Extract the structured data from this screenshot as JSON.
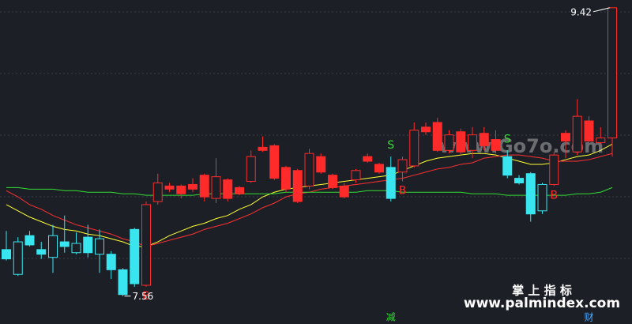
{
  "chart_data": {
    "type": "candlestick",
    "ylim": [
      7.38,
      9.47
    ],
    "open": [
      7.86,
      7.7,
      7.95,
      7.86,
      7.81,
      7.91,
      7.84,
      7.94,
      7.83,
      7.83,
      7.73,
      7.99,
      7.63,
      8.17,
      8.27,
      8.27,
      8.28,
      8.34,
      8.19,
      8.31,
      8.26,
      8.3,
      8.52,
      8.53,
      8.39,
      8.37,
      8.27,
      8.46,
      8.34,
      8.27,
      8.31,
      8.46,
      8.41,
      8.39,
      8.36,
      8.4,
      8.65,
      8.68,
      8.5,
      8.62,
      8.5,
      8.61,
      8.57,
      8.46,
      8.32,
      8.35,
      8.11,
      8.28,
      8.61,
      8.49,
      8.69,
      8.55,
      8.58
    ],
    "high": [
      7.98,
      7.94,
      7.98,
      7.91,
      8.02,
      8.08,
      7.97,
      8.02,
      7.99,
      7.85,
      7.74,
      8.0,
      8.17,
      8.35,
      8.29,
      8.28,
      8.32,
      8.35,
      8.45,
      8.32,
      8.27,
      8.5,
      8.59,
      8.54,
      8.4,
      8.38,
      8.51,
      8.48,
      8.35,
      8.29,
      8.38,
      8.48,
      8.42,
      8.46,
      8.46,
      8.68,
      8.68,
      8.71,
      8.63,
      8.64,
      8.65,
      8.65,
      8.63,
      8.5,
      8.34,
      8.36,
      8.29,
      8.49,
      8.63,
      8.83,
      8.72,
      8.65,
      9.42
    ],
    "low": [
      7.79,
      7.69,
      7.88,
      7.8,
      7.71,
      7.84,
      7.83,
      7.81,
      7.71,
      7.67,
      7.56,
      7.62,
      7.62,
      8.15,
      8.23,
      8.19,
      8.23,
      8.17,
      8.16,
      8.17,
      8.21,
      8.29,
      8.49,
      8.31,
      8.23,
      8.16,
      8.25,
      8.35,
      8.25,
      8.19,
      8.29,
      8.42,
      8.35,
      8.17,
      8.3,
      8.39,
      8.6,
      8.49,
      8.48,
      8.47,
      8.45,
      8.5,
      8.48,
      8.32,
      8.28,
      8.04,
      8.09,
      8.27,
      8.45,
      8.47,
      8.54,
      8.54,
      8.46
    ],
    "close": [
      7.8,
      7.91,
      7.89,
      7.83,
      7.95,
      7.88,
      7.9,
      7.84,
      7.93,
      7.73,
      7.57,
      7.64,
      8.15,
      8.29,
      8.25,
      8.22,
      8.25,
      8.2,
      8.33,
      8.19,
      8.22,
      8.46,
      8.5,
      8.32,
      8.25,
      8.17,
      8.48,
      8.36,
      8.26,
      8.2,
      8.37,
      8.43,
      8.36,
      8.19,
      8.44,
      8.63,
      8.62,
      8.5,
      8.6,
      8.49,
      8.6,
      8.53,
      8.5,
      8.34,
      8.29,
      8.09,
      8.28,
      8.47,
      8.56,
      8.72,
      8.56,
      8.58,
      9.42
    ],
    "candle_colors": [
      "#39e6f0",
      "#39e6f0",
      "#39e6f0",
      "#39e6f0",
      "#39e6f0",
      "#39e6f0",
      "#39e6f0",
      "#39e6f0",
      "#39e6f0",
      "#39e6f0",
      "#39e6f0",
      "#39e6f0",
      "#ff2a2a",
      "#ff2a2a",
      "#ff2a2a",
      "#ff2a2a",
      "#ff2a2a",
      "#ff2a2a",
      "#ff2a2a",
      "#ff2a2a",
      "#ff2a2a",
      "#ff2a2a",
      "#ff2a2a",
      "#ff2a2a",
      "#ff2a2a",
      "#ff2a2a",
      "#ff2a2a",
      "#ff2a2a",
      "#ff2a2a",
      "#ff2a2a",
      "#ff2a2a",
      "#ff2a2a",
      "#ff2a2a",
      "#39e6f0",
      "#ff2a2a",
      "#ff2a2a",
      "#ff2a2a",
      "#ff2a2a",
      "#ff2a2a",
      "#ff2a2a",
      "#ff2a2a",
      "#ff2a2a",
      "#ff2a2a",
      "#39e6f0",
      "#39e6f0",
      "#39e6f0",
      "#39e6f0",
      "#ff2a2a",
      "#ff2a2a",
      "#ff2a2a",
      "#ff2a2a",
      "#ff2a2a",
      "#ff2a2a"
    ],
    "lines": [
      {
        "color": "#ffff33",
        "values": [
          8.15,
          8.11,
          8.07,
          8.04,
          8.01,
          7.99,
          7.98,
          7.96,
          7.95,
          7.93,
          7.91,
          7.88,
          7.88,
          7.91,
          7.95,
          7.98,
          8.01,
          8.03,
          8.06,
          8.08,
          8.12,
          8.15,
          8.2,
          8.23,
          8.25,
          8.26,
          8.27,
          8.28,
          8.29,
          8.3,
          8.31,
          8.32,
          8.33,
          8.34,
          8.37,
          8.4,
          8.43,
          8.45,
          8.46,
          8.47,
          8.48,
          8.48,
          8.47,
          8.45,
          8.43,
          8.41,
          8.41,
          8.42,
          8.44,
          8.46,
          8.47,
          8.5,
          8.54
        ]
      },
      {
        "color": "#ff3030",
        "values": [
          8.24,
          8.2,
          8.15,
          8.12,
          8.08,
          8.05,
          8.02,
          8.0,
          7.98,
          7.96,
          7.93,
          7.91,
          7.88,
          7.9,
          7.92,
          7.94,
          7.96,
          7.99,
          8.01,
          8.03,
          8.06,
          8.09,
          8.13,
          8.16,
          8.2,
          8.22,
          8.23,
          8.25,
          8.26,
          8.27,
          8.28,
          8.29,
          8.3,
          8.31,
          8.32,
          8.34,
          8.36,
          8.38,
          8.39,
          8.41,
          8.42,
          8.45,
          8.46,
          8.47,
          8.47,
          8.46,
          8.45,
          8.43,
          8.43,
          8.43,
          8.44,
          8.46,
          8.48
        ]
      },
      {
        "color": "#33dd33",
        "values": [
          8.26,
          8.26,
          8.25,
          8.25,
          8.25,
          8.24,
          8.24,
          8.23,
          8.23,
          8.23,
          8.22,
          8.22,
          8.21,
          8.21,
          8.21,
          8.21,
          8.21,
          8.22,
          8.22,
          8.22,
          8.22,
          8.22,
          8.22,
          8.22,
          8.23,
          8.23,
          8.23,
          8.23,
          8.23,
          8.23,
          8.23,
          8.24,
          8.24,
          8.24,
          8.23,
          8.23,
          8.23,
          8.23,
          8.23,
          8.23,
          8.22,
          8.22,
          8.22,
          8.21,
          8.21,
          8.21,
          8.21,
          8.21,
          8.21,
          8.22,
          8.22,
          8.23,
          8.26
        ]
      }
    ],
    "signals": [
      null,
      null,
      null,
      null,
      null,
      null,
      null,
      null,
      null,
      null,
      null,
      null,
      "B",
      null,
      null,
      null,
      null,
      null,
      null,
      null,
      null,
      null,
      null,
      null,
      null,
      null,
      null,
      null,
      null,
      null,
      null,
      null,
      null,
      "S",
      "B",
      null,
      null,
      null,
      null,
      null,
      null,
      null,
      null,
      "S",
      null,
      null,
      null,
      "B",
      null,
      null,
      null,
      null,
      null
    ],
    "bottom_marks": [
      null,
      null,
      null,
      null,
      null,
      null,
      null,
      null,
      null,
      null,
      null,
      null,
      null,
      null,
      null,
      null,
      null,
      null,
      null,
      null,
      null,
      null,
      null,
      null,
      null,
      null,
      null,
      null,
      null,
      null,
      null,
      null,
      null,
      "减",
      null,
      null,
      null,
      null,
      null,
      null,
      null,
      null,
      null,
      null,
      null,
      null,
      null,
      null,
      null,
      null,
      "财",
      null,
      null
    ],
    "annotations": {
      "max": "9.42",
      "min": "7.56"
    },
    "watermarks": [
      "www.Go7o.com",
      "掌 上 指 标",
      "www.palmindex.com"
    ]
  }
}
